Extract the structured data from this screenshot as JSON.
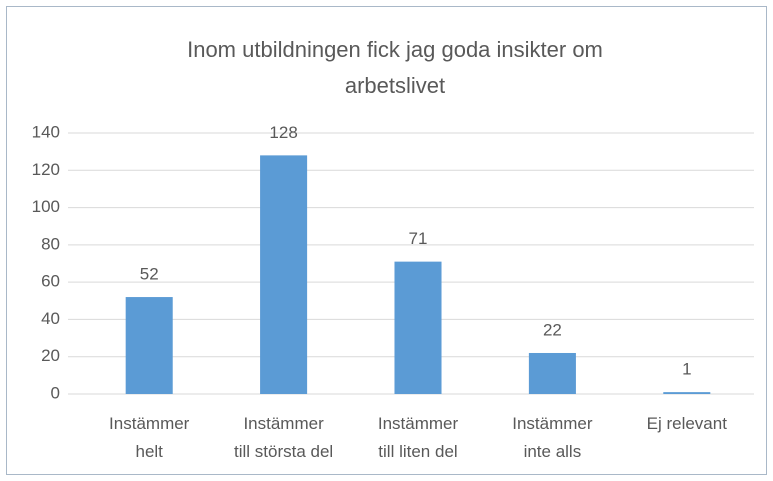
{
  "chart_data": {
    "type": "bar",
    "title": "Inom utbildningen fick jag goda insikter om arbetslivet",
    "categories": [
      "Instämmer\nhelt",
      "Instämmer\ntill största del",
      "Instämmer\ntill liten del",
      "Instämmer\ninte alls",
      "Ej relevant"
    ],
    "values": [
      52,
      128,
      71,
      22,
      1
    ],
    "color": "#5b9bd5",
    "ylim": [
      0,
      140
    ],
    "yticks": [
      0,
      20,
      40,
      60,
      80,
      100,
      120,
      140
    ],
    "grid": true
  }
}
